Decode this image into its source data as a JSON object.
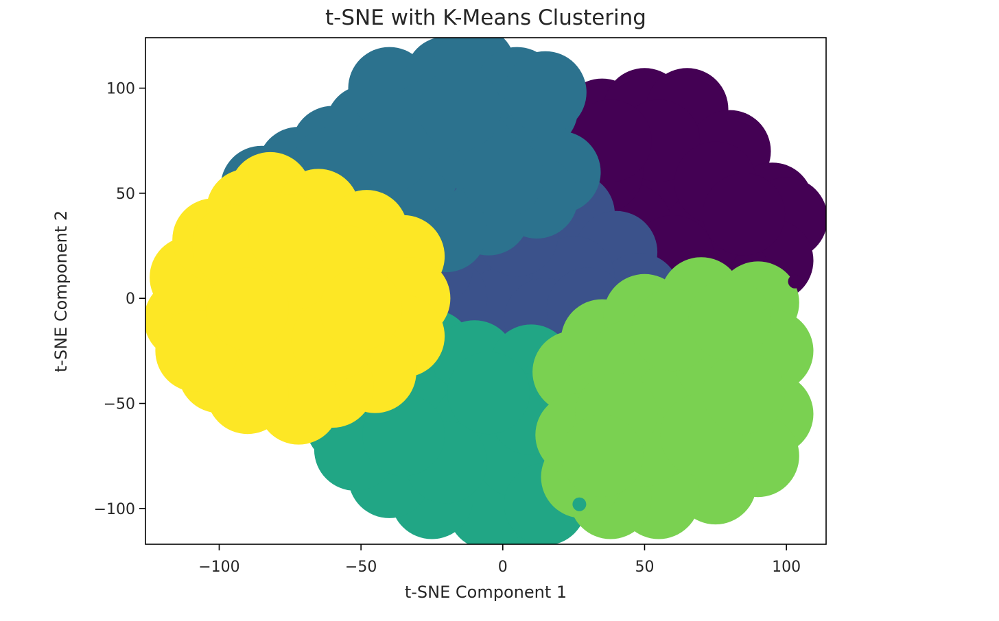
{
  "chart_data": {
    "type": "scatter",
    "title": "t-SNE with K-Means Clustering",
    "xlabel": "t-SNE Component 1",
    "ylabel": "t-SNE Component 2",
    "xlim": [
      -126,
      114
    ],
    "ylim": [
      -117,
      124
    ],
    "xticks": [
      -100,
      -50,
      0,
      50,
      100
    ],
    "xtick_labels": [
      "−100",
      "−50",
      "0",
      "50",
      "100"
    ],
    "yticks": [
      -100,
      -50,
      0,
      50,
      100
    ],
    "ytick_labels": [
      "−100",
      "−50",
      "0",
      "50",
      "100"
    ],
    "grid": false,
    "legend": "none",
    "colormap": "viridis",
    "series": [
      {
        "color": "#440154",
        "points": [
          [
            25,
            54
          ],
          [
            35,
            85
          ],
          [
            50,
            90
          ],
          [
            65,
            90
          ],
          [
            80,
            70
          ],
          [
            95,
            45
          ],
          [
            100,
            38
          ],
          [
            95,
            18
          ],
          [
            80,
            10
          ],
          [
            65,
            6
          ],
          [
            50,
            10
          ],
          [
            40,
            18
          ],
          [
            28,
            28
          ],
          [
            20,
            45
          ],
          [
            48,
            60
          ],
          [
            60,
            50
          ],
          [
            70,
            30
          ],
          [
            45,
            35
          ],
          [
            55,
            75
          ],
          [
            75,
            55
          ],
          [
            85,
            40
          ],
          [
            35,
            60
          ],
          [
            60,
            20
          ],
          [
            38,
            75
          ]
        ]
      },
      {
        "color": "#3b528b",
        "points": [
          [
            -32,
            25
          ],
          [
            -20,
            32
          ],
          [
            -5,
            42
          ],
          [
            12,
            46
          ],
          [
            25,
            40
          ],
          [
            40,
            22
          ],
          [
            48,
            2
          ],
          [
            40,
            -12
          ],
          [
            22,
            -25
          ],
          [
            5,
            -30
          ],
          [
            -15,
            -24
          ],
          [
            -30,
            -15
          ],
          [
            -35,
            5
          ],
          [
            -10,
            10
          ],
          [
            10,
            15
          ],
          [
            25,
            10
          ],
          [
            0,
            -5
          ],
          [
            -20,
            0
          ],
          [
            15,
            -10
          ],
          [
            5,
            30
          ],
          [
            30,
            -5
          ],
          [
            -25,
            15
          ]
        ]
      },
      {
        "color": "#2c728e",
        "points": [
          [
            -85,
            53
          ],
          [
            -72,
            62
          ],
          [
            -60,
            72
          ],
          [
            -48,
            82
          ],
          [
            -40,
            100
          ],
          [
            -20,
            105
          ],
          [
            -10,
            110
          ],
          [
            5,
            100
          ],
          [
            12,
            90
          ],
          [
            10,
            70
          ],
          [
            20,
            60
          ],
          [
            12,
            48
          ],
          [
            -5,
            40
          ],
          [
            -20,
            32
          ],
          [
            -35,
            30
          ],
          [
            -55,
            42
          ],
          [
            -70,
            48
          ],
          [
            -30,
            60
          ],
          [
            -10,
            70
          ],
          [
            -25,
            85
          ],
          [
            -50,
            55
          ],
          [
            0,
            58
          ],
          [
            15,
            98
          ],
          [
            -15,
            90
          ],
          [
            -40,
            70
          ],
          [
            -60,
            62
          ]
        ]
      },
      {
        "color": "#21a685",
        "points": [
          [
            -55,
            -60
          ],
          [
            -48,
            -45
          ],
          [
            -40,
            -35
          ],
          [
            -25,
            -25
          ],
          [
            -10,
            -30
          ],
          [
            10,
            -32
          ],
          [
            22,
            -40
          ],
          [
            25,
            -55
          ],
          [
            25,
            -75
          ],
          [
            20,
            -90
          ],
          [
            10,
            -100
          ],
          [
            -5,
            -100
          ],
          [
            -25,
            -95
          ],
          [
            -40,
            -85
          ],
          [
            -52,
            -72
          ],
          [
            -30,
            -55
          ],
          [
            -10,
            -60
          ],
          [
            5,
            -75
          ],
          [
            -20,
            -78
          ],
          [
            10,
            -55
          ],
          [
            -35,
            -65
          ],
          [
            15,
            -98
          ],
          [
            -5,
            -45
          ]
        ]
      },
      {
        "color": "#7ad151",
        "points": [
          [
            25,
            -35
          ],
          [
            35,
            -20
          ],
          [
            50,
            -8
          ],
          [
            70,
            0
          ],
          [
            90,
            -2
          ],
          [
            95,
            -25
          ],
          [
            95,
            -55
          ],
          [
            90,
            -75
          ],
          [
            75,
            -88
          ],
          [
            55,
            -95
          ],
          [
            38,
            -95
          ],
          [
            28,
            -85
          ],
          [
            26,
            -65
          ],
          [
            45,
            -30
          ],
          [
            60,
            -50
          ],
          [
            75,
            -30
          ],
          [
            50,
            -70
          ],
          [
            70,
            -65
          ],
          [
            85,
            -45
          ],
          [
            40,
            -55
          ],
          [
            60,
            -15
          ],
          [
            80,
            -10
          ],
          [
            35,
            -75
          ]
        ]
      },
      {
        "color": "#fde725",
        "points": [
          [
            -112,
            -10
          ],
          [
            -110,
            10
          ],
          [
            -102,
            28
          ],
          [
            -90,
            42
          ],
          [
            -82,
            50
          ],
          [
            -65,
            42
          ],
          [
            -48,
            32
          ],
          [
            -35,
            20
          ],
          [
            -33,
            0
          ],
          [
            -35,
            -18
          ],
          [
            -45,
            -35
          ],
          [
            -60,
            -42
          ],
          [
            -72,
            -50
          ],
          [
            -90,
            -45
          ],
          [
            -100,
            -35
          ],
          [
            -108,
            -25
          ],
          [
            -85,
            10
          ],
          [
            -70,
            0
          ],
          [
            -55,
            15
          ],
          [
            -80,
            -20
          ],
          [
            -60,
            -20
          ],
          [
            -95,
            25
          ],
          [
            -75,
            30
          ],
          [
            -50,
            -5
          ],
          [
            -90,
            -5
          ]
        ]
      }
    ],
    "outlier_points": [
      {
        "color": "#440154",
        "point": [
          103,
          8
        ]
      },
      {
        "color": "#2c728e",
        "point": [
          15,
          95
        ]
      },
      {
        "color": "#21a685",
        "point": [
          27,
          -98
        ]
      }
    ]
  }
}
